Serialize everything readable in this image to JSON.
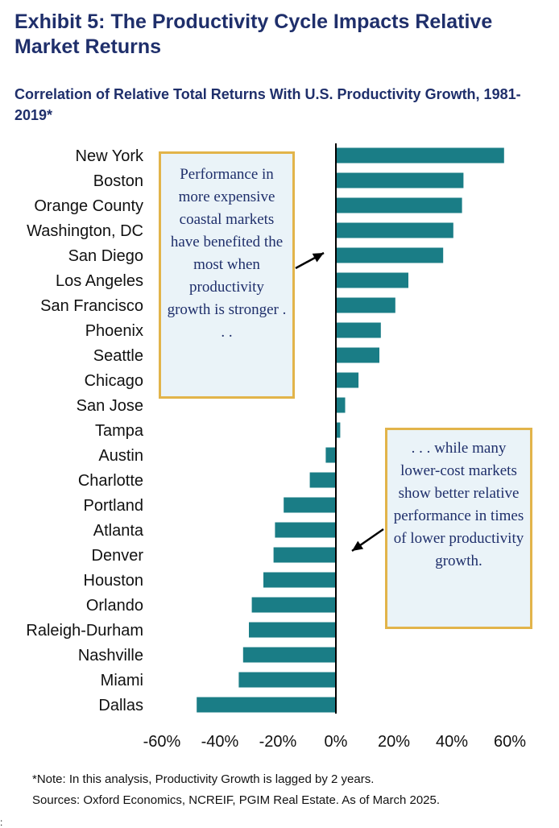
{
  "title": "Exhibit 5: The Productivity Cycle Impacts Relative Market Returns",
  "subtitle": "Correlation of Relative Total Returns With U.S. Productivity Growth, 1981-2019*",
  "callouts": {
    "left": "Performance in more expensive coastal markets have benefited the most when productivity growth is stronger . . .",
    "right": ". . . while many lower-cost markets show better relative performance in times of lower productivity growth."
  },
  "footnotes": {
    "note": "*Note: In this analysis, Productivity Growth is lagged by 2 years.",
    "sources": "Sources: Oxford Economics, NCREIF, PGIM Real Estate. As of March 2025."
  },
  "colors": {
    "bar": "#1a7d86",
    "text": "#1f2f6b",
    "callout_border": "#e2b44a",
    "callout_bg": "#eaf3f8"
  },
  "chart_data": {
    "type": "bar",
    "orientation": "horizontal",
    "categories": [
      "New York",
      "Boston",
      "Orange County",
      "Washington, DC",
      "San Diego",
      "Los Angeles",
      "San Francisco",
      "Phoenix",
      "Seattle",
      "Chicago",
      "San Jose",
      "Tampa",
      "Austin",
      "Charlotte",
      "Portland",
      "Atlanta",
      "Denver",
      "Houston",
      "Orlando",
      "Raleigh-Durham",
      "Nashville",
      "Miami",
      "Dallas"
    ],
    "values": [
      0.58,
      0.44,
      0.435,
      0.405,
      0.37,
      0.25,
      0.205,
      0.155,
      0.15,
      0.078,
      0.032,
      0.015,
      -0.035,
      -0.09,
      -0.18,
      -0.21,
      -0.215,
      -0.25,
      -0.29,
      -0.3,
      -0.32,
      -0.335,
      -0.48
    ],
    "xlim": [
      -0.6,
      0.6
    ],
    "xticks": [
      "-60%",
      "-40%",
      "-20%",
      "0%",
      "20%",
      "40%",
      "60%"
    ],
    "xtick_values": [
      -0.6,
      -0.4,
      -0.2,
      0,
      0.2,
      0.4,
      0.6
    ],
    "title": "",
    "xlabel": "",
    "ylabel": "",
    "legend": "none",
    "grid": false
  }
}
